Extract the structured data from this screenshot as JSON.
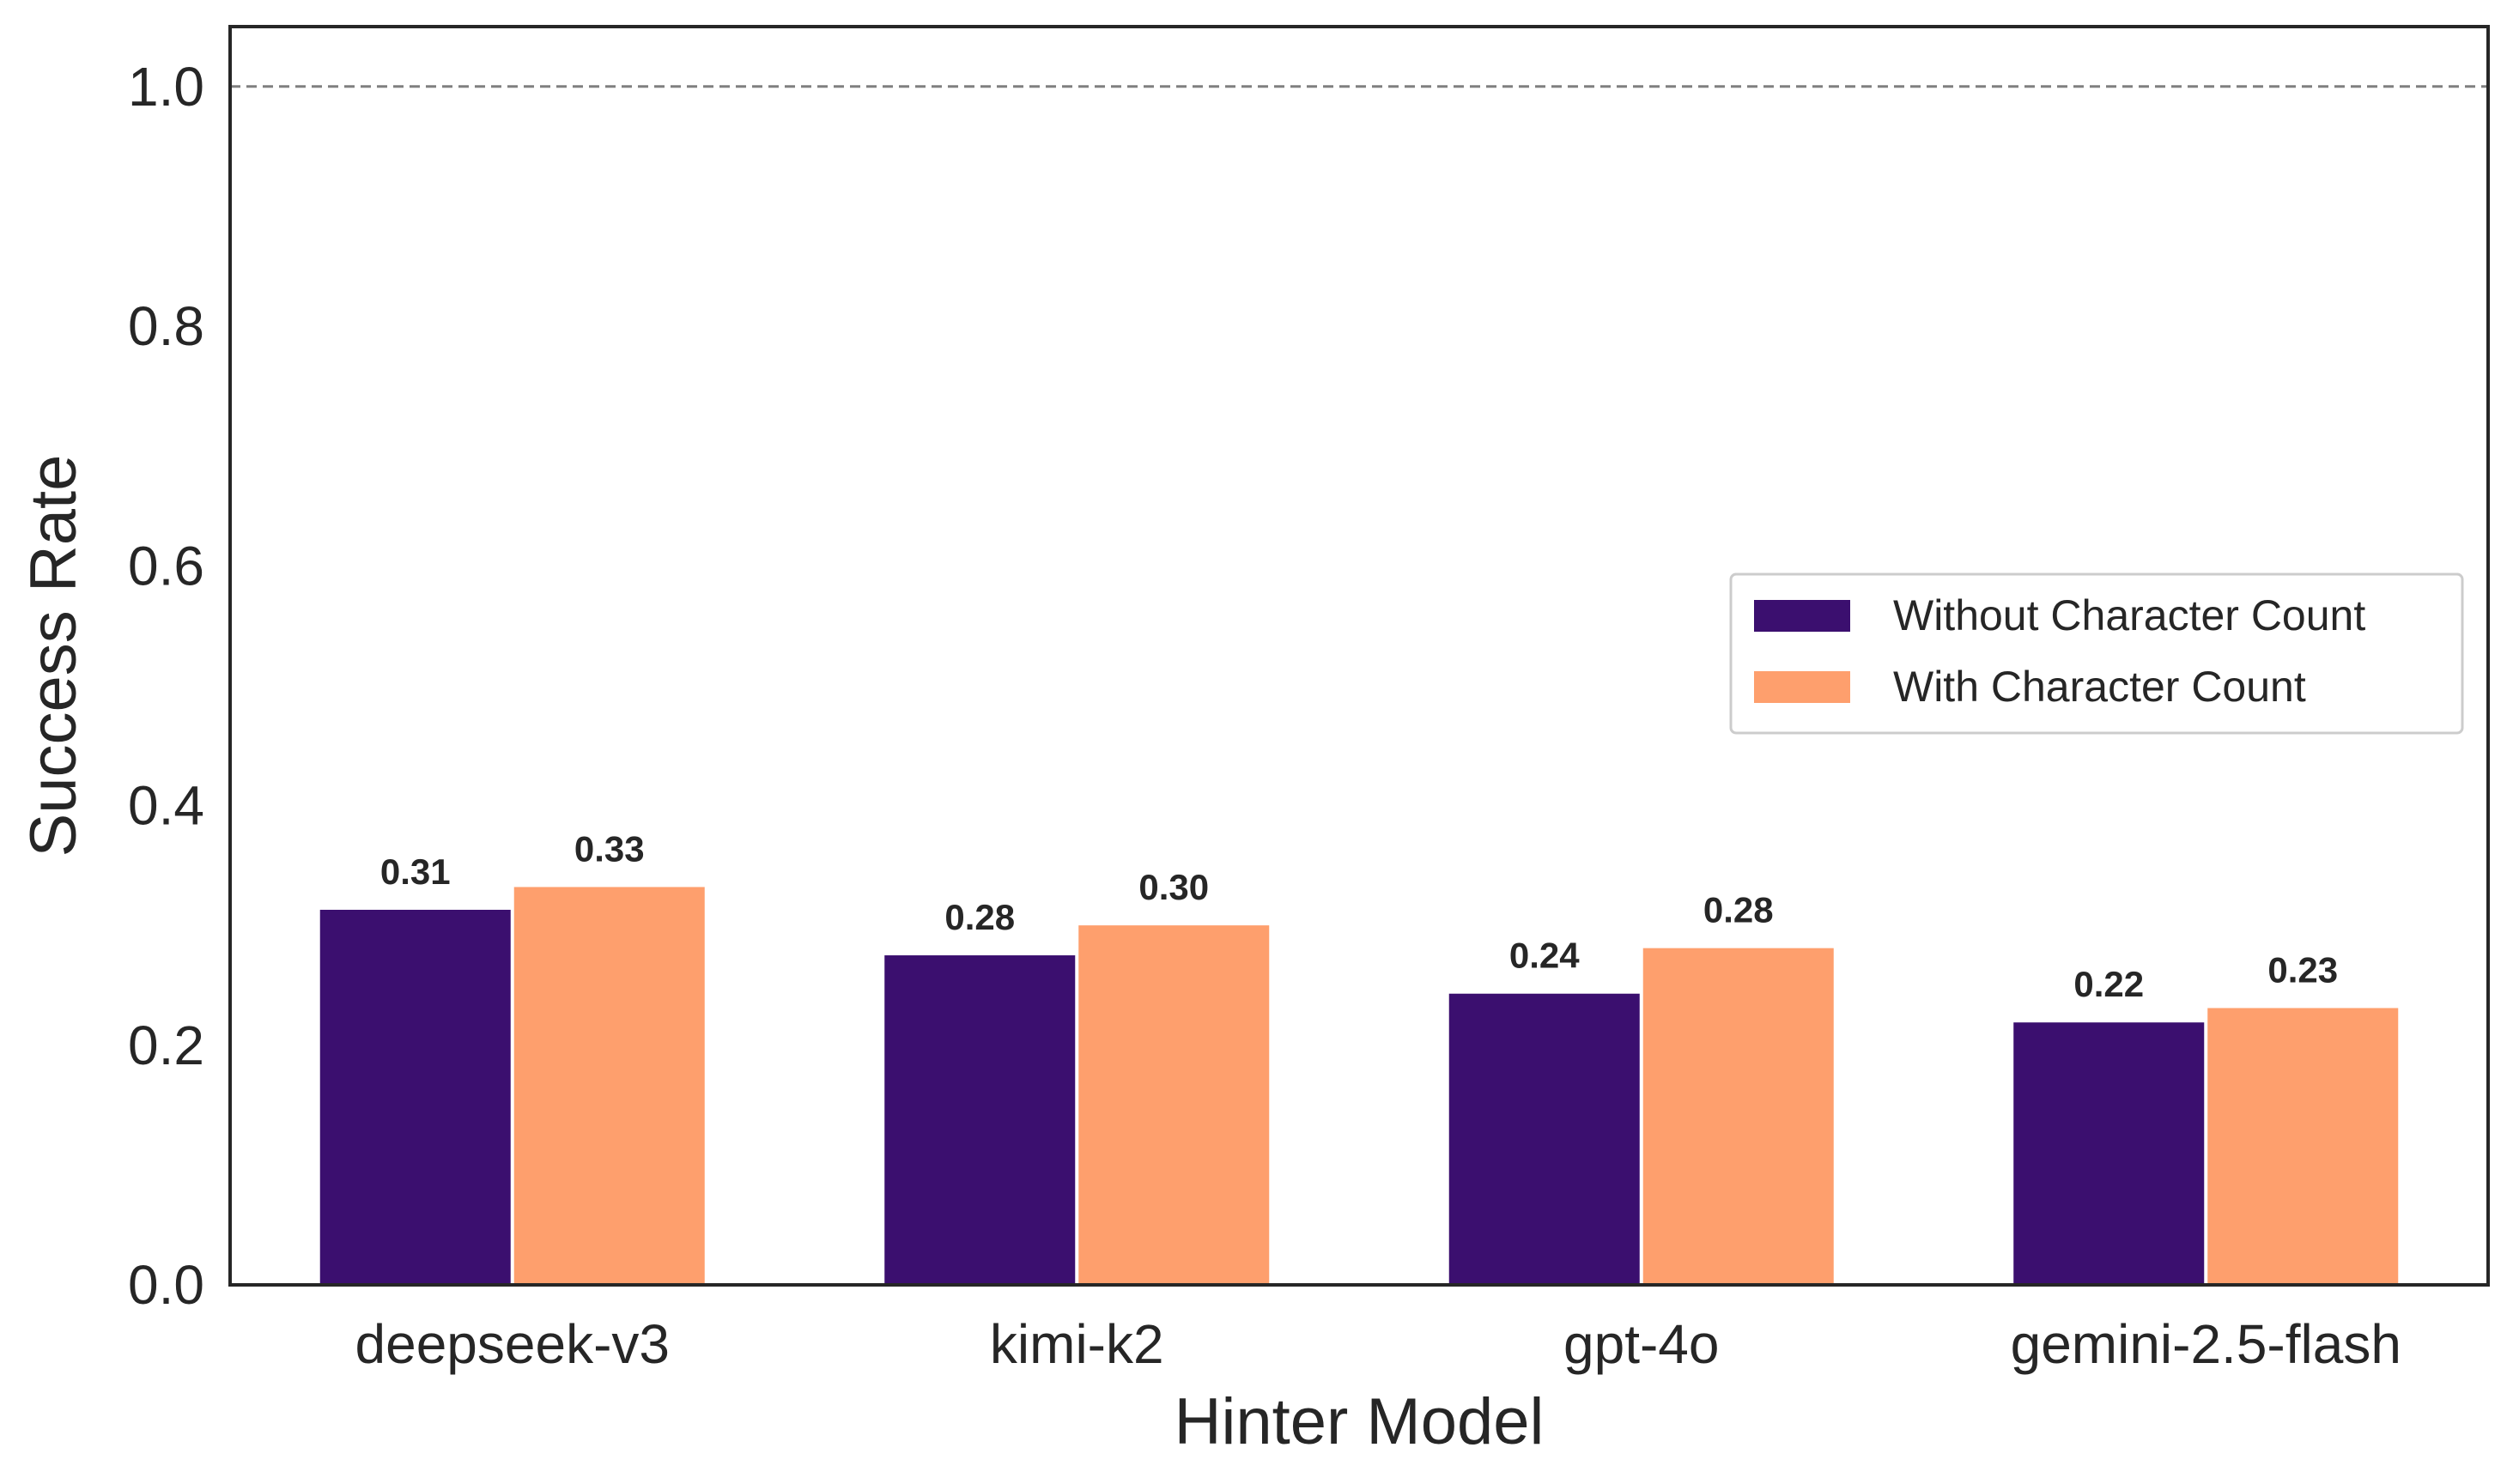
{
  "chart_data": {
    "type": "bar",
    "xlabel": "Hinter Model",
    "ylabel": "Success Rate",
    "ylim": [
      0,
      1.05
    ],
    "yticks": [
      "0.0",
      "0.2",
      "0.4",
      "0.6",
      "0.8",
      "1.0"
    ],
    "reference_line": 1.0,
    "grid": false,
    "legend_position": "center-right",
    "categories": [
      "deepseek-v3",
      "kimi-k2",
      "gpt-4o",
      "gemini-2.5-flash"
    ],
    "series": [
      {
        "name": "Without Character Count",
        "color": "#3b0f6f",
        "values": [
          0.313,
          0.275,
          0.243,
          0.219
        ],
        "labels": [
          "0.31",
          "0.28",
          "0.24",
          "0.22"
        ]
      },
      {
        "name": "With Character Count",
        "color": "#fe9f6d",
        "values": [
          0.332,
          0.3,
          0.281,
          0.231
        ],
        "labels": [
          "0.33",
          "0.30",
          "0.28",
          "0.23"
        ]
      }
    ]
  }
}
